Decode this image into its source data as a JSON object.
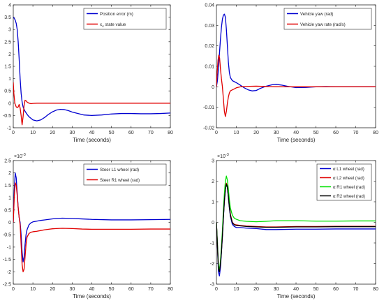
{
  "chart_data": [
    {
      "type": "line",
      "xlabel": "Time (seconds)",
      "xlim": [
        0,
        80
      ],
      "ylim": [
        -1,
        4
      ],
      "xticks": [
        "0",
        "10",
        "20",
        "30",
        "40",
        "50",
        "60",
        "70",
        "80"
      ],
      "yticks": [
        "-1",
        "-0.5",
        "0",
        "0.5",
        "1",
        "1.5",
        "2",
        "2.5",
        "3",
        "3.5",
        "4"
      ],
      "exponent": "",
      "legend_position": "top-right",
      "grid": false,
      "series": [
        {
          "name": "Position error (m)",
          "color": "#0000d0",
          "x": [
            0,
            0.5,
            1,
            1.5,
            2,
            2.5,
            3,
            3.5,
            4,
            4.5,
            5,
            5.5,
            6,
            7,
            8,
            10,
            12,
            14,
            16,
            18,
            20,
            22,
            24,
            26,
            28,
            30,
            33,
            36,
            40,
            45,
            50,
            55,
            60,
            65,
            70,
            75,
            80
          ],
          "y": [
            3.5,
            3.45,
            3.38,
            3.25,
            3.0,
            2.5,
            1.8,
            1.0,
            0.4,
            0.05,
            -0.15,
            -0.25,
            -0.33,
            -0.45,
            -0.55,
            -0.68,
            -0.72,
            -0.68,
            -0.58,
            -0.45,
            -0.35,
            -0.28,
            -0.25,
            -0.26,
            -0.3,
            -0.36,
            -0.42,
            -0.48,
            -0.5,
            -0.48,
            -0.44,
            -0.42,
            -0.42,
            -0.43,
            -0.43,
            -0.42,
            -0.4
          ]
        },
        {
          "name": "x_4 state value",
          "color": "#e00000",
          "x": [
            0,
            0.3,
            0.8,
            1.5,
            2,
            2.5,
            3,
            3.5,
            4,
            4.5,
            5,
            5.5,
            6,
            6.5,
            7,
            8,
            9,
            10,
            12,
            15,
            20,
            30,
            40,
            50,
            60,
            70,
            80
          ],
          "y": [
            0.85,
            0.4,
            0.0,
            -0.15,
            -0.18,
            -0.15,
            -0.05,
            -0.2,
            -0.5,
            -0.88,
            -0.55,
            -0.1,
            0.12,
            0.1,
            0.05,
            0.0,
            -0.02,
            -0.01,
            0,
            0,
            0,
            0,
            0,
            0,
            0,
            0,
            0
          ]
        }
      ]
    },
    {
      "type": "line",
      "xlabel": "Time (seconds)",
      "xlim": [
        0,
        80
      ],
      "ylim": [
        -0.02,
        0.04
      ],
      "xticks": [
        "0",
        "10",
        "20",
        "30",
        "40",
        "50",
        "60",
        "70",
        "80"
      ],
      "yticks": [
        "-0.02",
        "-0.01",
        "0",
        "0.01",
        "0.02",
        "0.03",
        "0.04"
      ],
      "exponent": "",
      "legend_position": "top-right",
      "grid": false,
      "series": [
        {
          "name": "Vehicle yaw (rad)",
          "color": "#0000d0",
          "x": [
            0,
            0.5,
            1,
            1.5,
            2,
            2.5,
            3,
            3.5,
            4,
            4.5,
            5,
            5.5,
            6,
            6.5,
            7,
            8,
            9,
            10,
            12,
            14,
            16,
            18,
            20,
            22,
            25,
            28,
            30,
            33,
            36,
            40,
            45,
            50,
            55,
            60,
            70,
            80
          ],
          "y": [
            0,
            0.003,
            0.009,
            0.016,
            0.023,
            0.029,
            0.033,
            0.035,
            0.0355,
            0.034,
            0.028,
            0.02,
            0.012,
            0.007,
            0.0045,
            0.003,
            0.0025,
            0.002,
            0.0008,
            -0.0005,
            -0.0015,
            -0.002,
            -0.0018,
            -0.0008,
            0.0003,
            0.001,
            0.0012,
            0.0008,
            0.0002,
            -0.0004,
            -0.0003,
            0,
            0.0001,
            0,
            0,
            0
          ]
        },
        {
          "name": "Vehicle yaw rate (rad/s)",
          "color": "#e00000",
          "x": [
            0,
            0.3,
            0.8,
            1.2,
            1.6,
            2,
            2.5,
            3,
            3.5,
            4,
            4.5,
            5,
            5.5,
            6,
            6.5,
            7,
            8,
            9,
            10,
            12,
            15,
            20,
            30,
            40,
            50,
            60,
            70,
            80
          ],
          "y": [
            0,
            0.006,
            0.013,
            0.0155,
            0.014,
            0.009,
            0.004,
            0.0,
            -0.006,
            -0.012,
            -0.0145,
            -0.012,
            -0.008,
            -0.005,
            -0.003,
            -0.002,
            -0.0015,
            -0.001,
            -0.0005,
            0,
            0.0002,
            0.0003,
            0,
            0,
            0,
            0,
            0,
            0
          ]
        }
      ]
    },
    {
      "type": "line",
      "xlabel": "Time (seconds)",
      "xlim": [
        0,
        80
      ],
      "ylim": [
        -2.5,
        2.5
      ],
      "xticks": [
        "0",
        "10",
        "20",
        "30",
        "40",
        "50",
        "60",
        "70",
        "80"
      ],
      "yticks": [
        "-2.5",
        "-2",
        "-1.5",
        "-1",
        "-0.5",
        "0",
        "0.5",
        "1",
        "1.5",
        "2",
        "2.5"
      ],
      "exponent": "-3",
      "legend_position": "top-right",
      "grid": false,
      "series": [
        {
          "name": "Steer L1 wheel (rad)",
          "color": "#0000d0",
          "x": [
            0,
            0.5,
            1,
            1.5,
            2,
            2.5,
            3,
            3.5,
            4,
            4.5,
            5,
            5.5,
            6,
            6.5,
            7,
            8,
            9,
            10,
            12,
            14,
            16,
            18,
            20,
            22,
            25,
            30,
            35,
            40,
            50,
            60,
            70,
            80
          ],
          "y": [
            0,
            1.3,
            2.0,
            1.8,
            1.2,
            0.6,
            0.2,
            0.0,
            -0.5,
            -1.2,
            -1.6,
            -1.4,
            -0.9,
            -0.5,
            -0.3,
            -0.1,
            -0.02,
            0.02,
            0.05,
            0.08,
            0.1,
            0.12,
            0.14,
            0.16,
            0.17,
            0.16,
            0.14,
            0.12,
            0.1,
            0.1,
            0.11,
            0.12
          ]
        },
        {
          "name": "Steer R1 wheel (rad)",
          "color": "#e00000",
          "x": [
            0,
            0.5,
            1,
            1.5,
            2,
            2.5,
            3,
            3.5,
            4,
            4.5,
            5,
            5.5,
            6,
            6.5,
            7,
            8,
            9,
            10,
            12,
            14,
            16,
            18,
            20,
            22,
            25,
            30,
            35,
            40,
            50,
            60,
            70,
            80
          ],
          "y": [
            0,
            1.0,
            1.6,
            1.5,
            1.1,
            0.6,
            0.2,
            -0.1,
            -0.9,
            -1.7,
            -2.0,
            -1.9,
            -1.4,
            -0.9,
            -0.6,
            -0.45,
            -0.4,
            -0.38,
            -0.36,
            -0.33,
            -0.3,
            -0.28,
            -0.26,
            -0.25,
            -0.24,
            -0.25,
            -0.27,
            -0.28,
            -0.28,
            -0.28,
            -0.27,
            -0.27
          ]
        }
      ]
    },
    {
      "type": "line",
      "xlabel": "Time (seconds)",
      "xlim": [
        0,
        80
      ],
      "ylim": [
        -3,
        3
      ],
      "xticks": [
        "0",
        "10",
        "20",
        "30",
        "40",
        "50",
        "60",
        "70",
        "80"
      ],
      "yticks": [
        "-3",
        "-2",
        "-1",
        "0",
        "1",
        "2",
        "3"
      ],
      "exponent": "-3",
      "legend_position": "top-right",
      "grid": false,
      "series": [
        {
          "name": "α L1 wheel (rad)",
          "color": "#0000d0",
          "x": [
            0,
            0.5,
            1,
            1.5,
            2,
            2.5,
            3,
            3.5,
            4,
            4.5,
            5,
            5.5,
            6,
            6.5,
            7,
            8,
            9,
            10,
            12,
            15,
            20,
            25,
            30,
            40,
            50,
            60,
            70,
            80
          ],
          "y": [
            0,
            -1.2,
            -2.4,
            -2.6,
            -2.2,
            -1.5,
            -0.7,
            0.2,
            1.0,
            1.6,
            1.85,
            1.7,
            1.2,
            0.7,
            0.3,
            -0.1,
            -0.2,
            -0.25,
            -0.25,
            -0.28,
            -0.3,
            -0.35,
            -0.35,
            -0.33,
            -0.33,
            -0.32,
            -0.32,
            -0.32
          ]
        },
        {
          "name": "α L2 wheel (rad)",
          "color": "#e00000",
          "x": [
            0,
            0.5,
            1,
            1.5,
            2,
            2.5,
            3,
            3.5,
            4,
            4.5,
            5,
            5.5,
            6,
            6.5,
            7,
            8,
            9,
            10,
            12,
            15,
            20,
            25,
            30,
            40,
            50,
            60,
            70,
            80
          ],
          "y": [
            0,
            -1.1,
            -2.2,
            -2.35,
            -2.0,
            -1.4,
            -0.6,
            0.3,
            1.1,
            1.65,
            1.9,
            1.75,
            1.3,
            0.8,
            0.4,
            0.0,
            -0.1,
            -0.12,
            -0.15,
            -0.18,
            -0.2,
            -0.22,
            -0.22,
            -0.2,
            -0.2,
            -0.19,
            -0.19,
            -0.19
          ]
        },
        {
          "name": "α R1 wheel (rad)",
          "color": "#00e000",
          "x": [
            0,
            0.5,
            1,
            1.5,
            2,
            2.5,
            3,
            3.5,
            4,
            4.5,
            5,
            5.5,
            6,
            6.5,
            7,
            8,
            9,
            10,
            12,
            15,
            20,
            25,
            30,
            40,
            50,
            60,
            70,
            80
          ],
          "y": [
            0,
            -1.0,
            -2.1,
            -2.3,
            -1.9,
            -1.2,
            -0.4,
            0.6,
            1.4,
            2.0,
            2.25,
            2.05,
            1.6,
            1.1,
            0.7,
            0.35,
            0.2,
            0.15,
            0.08,
            0.05,
            0.03,
            0.05,
            0.08,
            0.08,
            0.06,
            0.06,
            0.07,
            0.07
          ]
        },
        {
          "name": "α R2 wheel (rad)",
          "color": "#000000",
          "x": [
            0,
            0.5,
            1,
            1.5,
            2,
            2.5,
            3,
            3.5,
            4,
            4.5,
            5,
            5.5,
            6,
            6.5,
            7,
            8,
            9,
            10,
            12,
            15,
            20,
            25,
            30,
            40,
            50,
            60,
            70,
            80
          ],
          "y": [
            0,
            -1.1,
            -2.25,
            -2.4,
            -2.05,
            -1.45,
            -0.65,
            0.25,
            1.05,
            1.6,
            1.85,
            1.72,
            1.25,
            0.75,
            0.35,
            -0.02,
            -0.12,
            -0.15,
            -0.17,
            -0.2,
            -0.22,
            -0.24,
            -0.24,
            -0.22,
            -0.22,
            -0.21,
            -0.21,
            -0.21
          ]
        }
      ]
    }
  ]
}
